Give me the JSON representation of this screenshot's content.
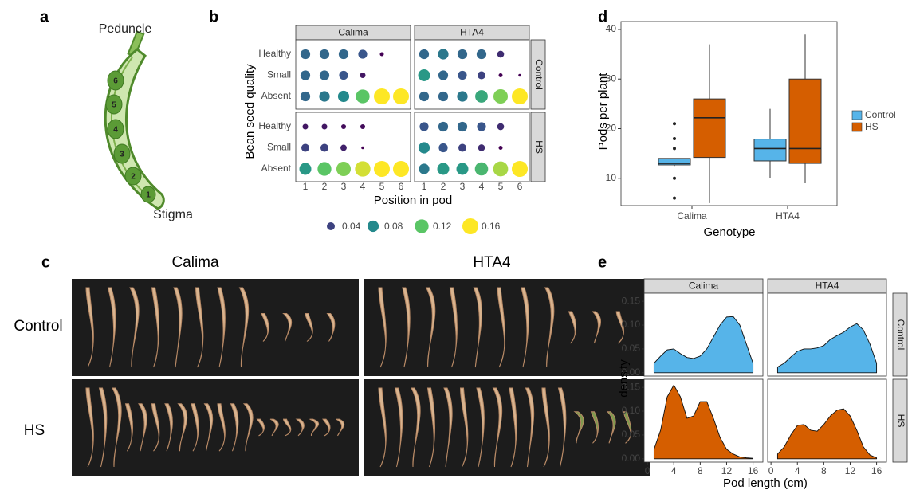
{
  "panel_labels": [
    "a",
    "b",
    "c",
    "d",
    "e"
  ],
  "diagram": {
    "top_label": "Peduncle",
    "bottom_label": "Stigma",
    "seeds": [
      "1",
      "2",
      "3",
      "4",
      "5",
      "6"
    ]
  },
  "photos": {
    "columns": [
      "Calima",
      "HTA4"
    ],
    "rows": [
      "Control",
      "HS"
    ]
  },
  "chart_data": [
    {
      "type": "dotplot",
      "columns": [
        "Calima",
        "HTA4"
      ],
      "rows": [
        "Control",
        "HS"
      ],
      "categories": [
        1,
        2,
        3,
        4,
        5,
        6
      ],
      "y_categories": [
        "Healthy",
        "Small",
        "Absent"
      ],
      "x_label": "Position in pod",
      "y_label": "Bean seed quality",
      "panels": [
        {
          "values": [
            [
              0.06,
              0.06,
              0.06,
              0.05,
              0.01,
              null
            ],
            [
              0.06,
              0.06,
              0.05,
              0.02,
              null,
              null
            ],
            [
              0.06,
              0.07,
              0.08,
              0.12,
              0.16,
              0.16
            ]
          ]
        },
        {
          "values": [
            [
              0.06,
              0.07,
              0.06,
              0.06,
              0.03,
              null
            ],
            [
              0.09,
              0.06,
              0.05,
              0.04,
              0.01,
              0.005
            ],
            [
              0.06,
              0.06,
              0.07,
              0.1,
              0.13,
              0.16
            ]
          ]
        },
        {
          "values": [
            [
              0.02,
              0.02,
              0.015,
              0.015,
              null,
              null
            ],
            [
              0.04,
              0.04,
              0.025,
              0.005,
              null,
              null
            ],
            [
              0.09,
              0.12,
              0.13,
              0.15,
              0.16,
              0.16
            ]
          ]
        },
        {
          "values": [
            [
              0.05,
              0.06,
              0.06,
              0.05,
              0.03,
              null
            ],
            [
              0.08,
              0.05,
              0.04,
              0.03,
              0.01,
              null
            ],
            [
              0.07,
              0.09,
              0.09,
              0.11,
              0.14,
              0.16
            ]
          ]
        }
      ],
      "size_legend": [
        0.04,
        0.08,
        0.12,
        0.16
      ]
    },
    {
      "type": "box",
      "categories": [
        "Calima",
        "HTA4"
      ],
      "x_label": "Genotype",
      "y_label": "Pods per plant",
      "ylim": [
        4.5,
        41.6
      ],
      "yticks": [
        10,
        20,
        30,
        40
      ],
      "series": [
        {
          "name": "Control",
          "color": "#56b4e9",
          "boxes": [
            {
              "min": 12.5,
              "q1": 12.7,
              "median": 13,
              "q3": 14,
              "max": 14,
              "outliers": [
                21,
                18,
                16,
                10,
                6
              ]
            },
            {
              "min": 10,
              "q1": 13.5,
              "median": 16,
              "q3": 17.9,
              "max": 24,
              "outliers": []
            }
          ]
        },
        {
          "name": "HS",
          "color": "#d55e00",
          "boxes": [
            {
              "min": 5,
              "q1": 14.2,
              "median": 22.2,
              "q3": 26,
              "max": 37,
              "outliers": []
            },
            {
              "min": 9,
              "q1": 13,
              "median": 16,
              "q3": 30,
              "max": 39,
              "outliers": []
            }
          ]
        }
      ]
    },
    {
      "type": "density",
      "columns": [
        "Calima",
        "HTA4"
      ],
      "rows": [
        "Control",
        "HS"
      ],
      "x_label": "Pod length (cm)",
      "y_label": "density",
      "xlim": [
        -0.5,
        17.5
      ],
      "ylim": [
        -0.007,
        0.167
      ],
      "xticks": [
        0,
        4,
        8,
        12,
        16
      ],
      "yticks": [
        {
          "value": 0,
          "label": "0.00"
        },
        0.05,
        {
          "value": 0.1,
          "label": "0.10"
        },
        0.15
      ],
      "x": [
        1,
        2,
        3,
        4,
        5,
        6,
        7,
        8,
        9,
        10,
        11,
        12,
        13,
        14,
        15,
        16
      ],
      "panels": [
        {
          "color": "#56b4e9",
          "values": [
            0.02,
            0.035,
            0.048,
            0.05,
            0.04,
            0.032,
            0.03,
            0.035,
            0.05,
            0.075,
            0.1,
            0.117,
            0.118,
            0.1,
            0.06,
            0.02
          ]
        },
        {
          "color": "#56b4e9",
          "values": [
            0.012,
            0.02,
            0.033,
            0.045,
            0.05,
            0.05,
            0.052,
            0.057,
            0.07,
            0.078,
            0.085,
            0.096,
            0.103,
            0.09,
            0.06,
            0.02
          ]
        },
        {
          "color": "#d55e00",
          "values": [
            0.02,
            0.06,
            0.13,
            0.155,
            0.13,
            0.085,
            0.09,
            0.12,
            0.12,
            0.085,
            0.045,
            0.02,
            0.01,
            0.004,
            0.002,
            0.001
          ]
        },
        {
          "color": "#d55e00",
          "values": [
            0.01,
            0.025,
            0.05,
            0.07,
            0.072,
            0.06,
            0.058,
            0.072,
            0.09,
            0.102,
            0.105,
            0.09,
            0.06,
            0.025,
            0.008,
            0.002
          ]
        }
      ]
    }
  ]
}
